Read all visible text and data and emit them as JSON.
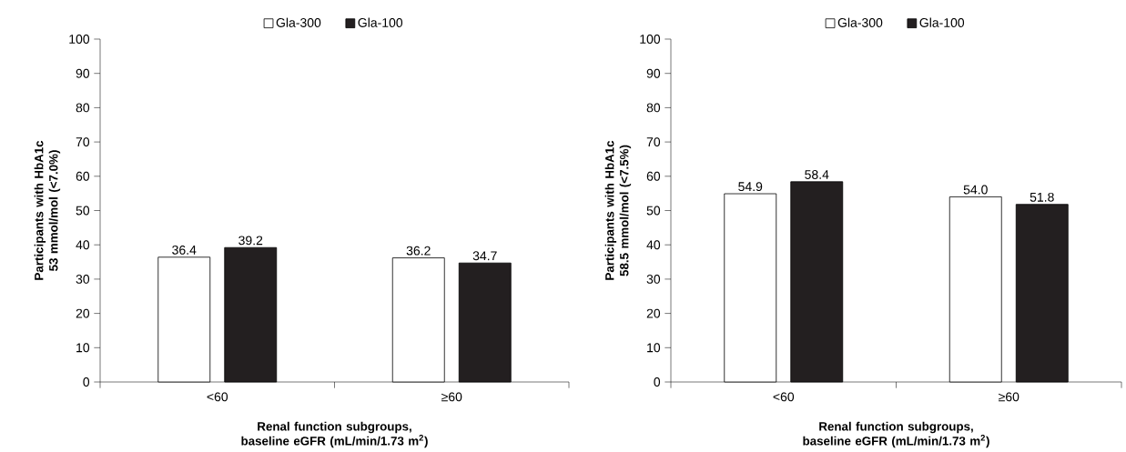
{
  "chart_data": [
    {
      "type": "bar",
      "categories": [
        "<60",
        "≥60"
      ],
      "xlabel": "Renal function subgroups, baseline eGFR (mL/min/1.73 m$^{2}$)",
      "ylabel": "Participants with HbA1c 53 mmol/mol (<7.0%)",
      "ylim": [
        0,
        100
      ],
      "yticks": [
        0,
        10,
        20,
        30,
        40,
        50,
        60,
        70,
        80,
        90,
        100
      ],
      "legend": "top",
      "series": [
        {
          "name": "Gla-300",
          "color": "#ffffff",
          "values": [
            36.4,
            36.2
          ],
          "value_labels": [
            "36.4",
            "36.2"
          ]
        },
        {
          "name": "Gla-100",
          "color": "#231f20",
          "values": [
            39.2,
            34.7
          ],
          "value_labels": [
            "39.2",
            "34.7"
          ]
        }
      ]
    },
    {
      "type": "bar",
      "categories": [
        "<60",
        "≥60"
      ],
      "xlabel": "Renal function subgroups, baseline eGFR (mL/min/1.73 m$^{2}$)",
      "ylabel": "Participants with HbA1c 58.5 mmol/mol (<7.5%)",
      "ylim": [
        0,
        100
      ],
      "yticks": [
        0,
        10,
        20,
        30,
        40,
        50,
        60,
        70,
        80,
        90,
        100
      ],
      "legend": "top",
      "series": [
        {
          "name": "Gla-300",
          "color": "#ffffff",
          "values": [
            54.9,
            54.0
          ],
          "value_labels": [
            "54.9",
            "54.0"
          ]
        },
        {
          "name": "Gla-100",
          "color": "#231f20",
          "values": [
            58.4,
            51.8
          ],
          "value_labels": [
            "58.4",
            "51.8"
          ]
        }
      ]
    }
  ]
}
